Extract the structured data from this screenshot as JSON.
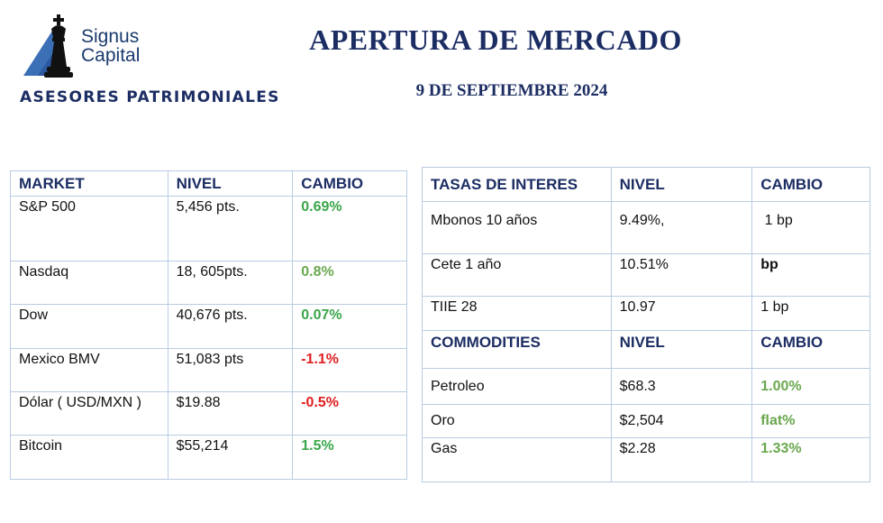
{
  "brand": {
    "line1": "Signus",
    "line2": "Capital",
    "tagline": "ASESORES PATRIMONIALES"
  },
  "header": {
    "title": "APERTURA DE MERCADO",
    "date": "9 DE SEPTIEMBRE 2024"
  },
  "market_table": {
    "headers": [
      "MARKET",
      "NIVEL",
      "CAMBIO"
    ],
    "rows": [
      {
        "market": "S&P 500",
        "nivel": "5,456 pts.",
        "cambio": "0.69%"
      },
      {
        "market": "Nasdaq",
        "nivel": "18, 605pts.",
        "cambio": "0.8%"
      },
      {
        "market": "Dow",
        "nivel": "40,676 pts.",
        "cambio": "0.07%"
      },
      {
        "market": "Mexico BMV",
        "nivel": "51,083 pts",
        "cambio": "-1.1%"
      },
      {
        "market": "Dólar ( USD/MXN )",
        "nivel": "$19.88",
        "cambio": "-0.5%"
      },
      {
        "market": "Bitcoin",
        "nivel": "$55,214",
        "cambio": "1.5%"
      }
    ]
  },
  "rates_table": {
    "headers": [
      "TASAS DE INTERES",
      "NIVEL",
      "CAMBIO"
    ],
    "rows": [
      {
        "name": "Mbonos 10 años",
        "nivel": "9.49%,",
        "cambio": " 1 bp"
      },
      {
        "name": "Cete 1 año",
        "nivel": "10.51%",
        "cambio": "bp"
      },
      {
        "name": "TIIE 28",
        "nivel": "10.97",
        "cambio": "1 bp"
      }
    ]
  },
  "commodities_table": {
    "headers": [
      "COMMODITIES",
      "NIVEL",
      "CAMBIO"
    ],
    "rows": [
      {
        "name": "Petroleo",
        "nivel": "$68.3",
        "cambio": "1.00%"
      },
      {
        "name": "Oro",
        "nivel": "$2,504",
        "cambio": "flat%"
      },
      {
        "name": "Gas",
        "nivel": "$2.28",
        "cambio": "1.33%"
      }
    ]
  },
  "colors": {
    "navy": "#1c2d63",
    "positive": "#3aa64a",
    "negative": "#e02020",
    "border": "#b9cce3"
  }
}
